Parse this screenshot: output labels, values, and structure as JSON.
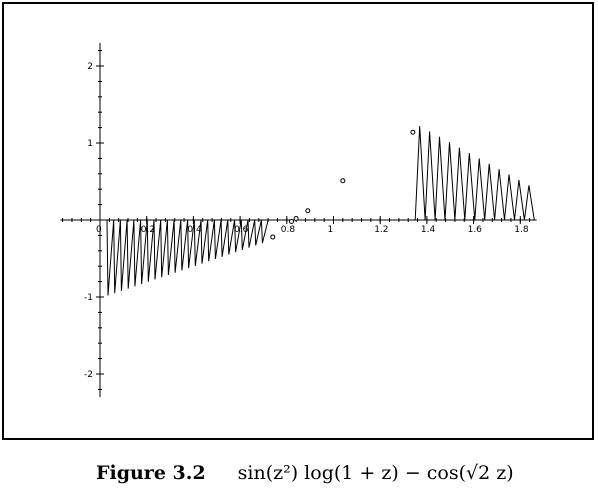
{
  "chart_data": {
    "type": "line",
    "title": "",
    "xlabel": "",
    "ylabel": "",
    "xlim": [
      -0.17,
      1.87
    ],
    "ylim": [
      -2.3,
      2.3
    ],
    "x_ticks": [
      "0",
      "0.2",
      "0.4",
      "0.6",
      "0.8",
      "1",
      "1.2",
      "1.4",
      "1.6",
      "1.8"
    ],
    "y_ticks": [
      "-2",
      "-1",
      "1",
      "2"
    ],
    "grid": false,
    "legend": "none",
    "line_color": "#000000",
    "sawtooth_left": {
      "x_start": 0.03,
      "x_end": 0.72,
      "teeth": 24,
      "amplitude_start": -0.98,
      "amplitude_end": -0.3
    },
    "sawtooth_right": {
      "x_start": 1.35,
      "x_end": 1.86,
      "teeth": 12,
      "amplitude_start": 1.22,
      "amplitude_end": 0.45
    },
    "isolated_points": [
      {
        "x": 0.74,
        "y": -0.22
      },
      {
        "x": 0.82,
        "y": -0.02
      },
      {
        "x": 0.84,
        "y": 0.02
      },
      {
        "x": 0.89,
        "y": 0.12
      },
      {
        "x": 1.04,
        "y": 0.51
      },
      {
        "x": 1.34,
        "y": 1.14
      }
    ]
  },
  "caption": {
    "figure_label": "Figure 3.2",
    "expression": "sin(z²) log(1 + z) − cos(√2 z)"
  }
}
